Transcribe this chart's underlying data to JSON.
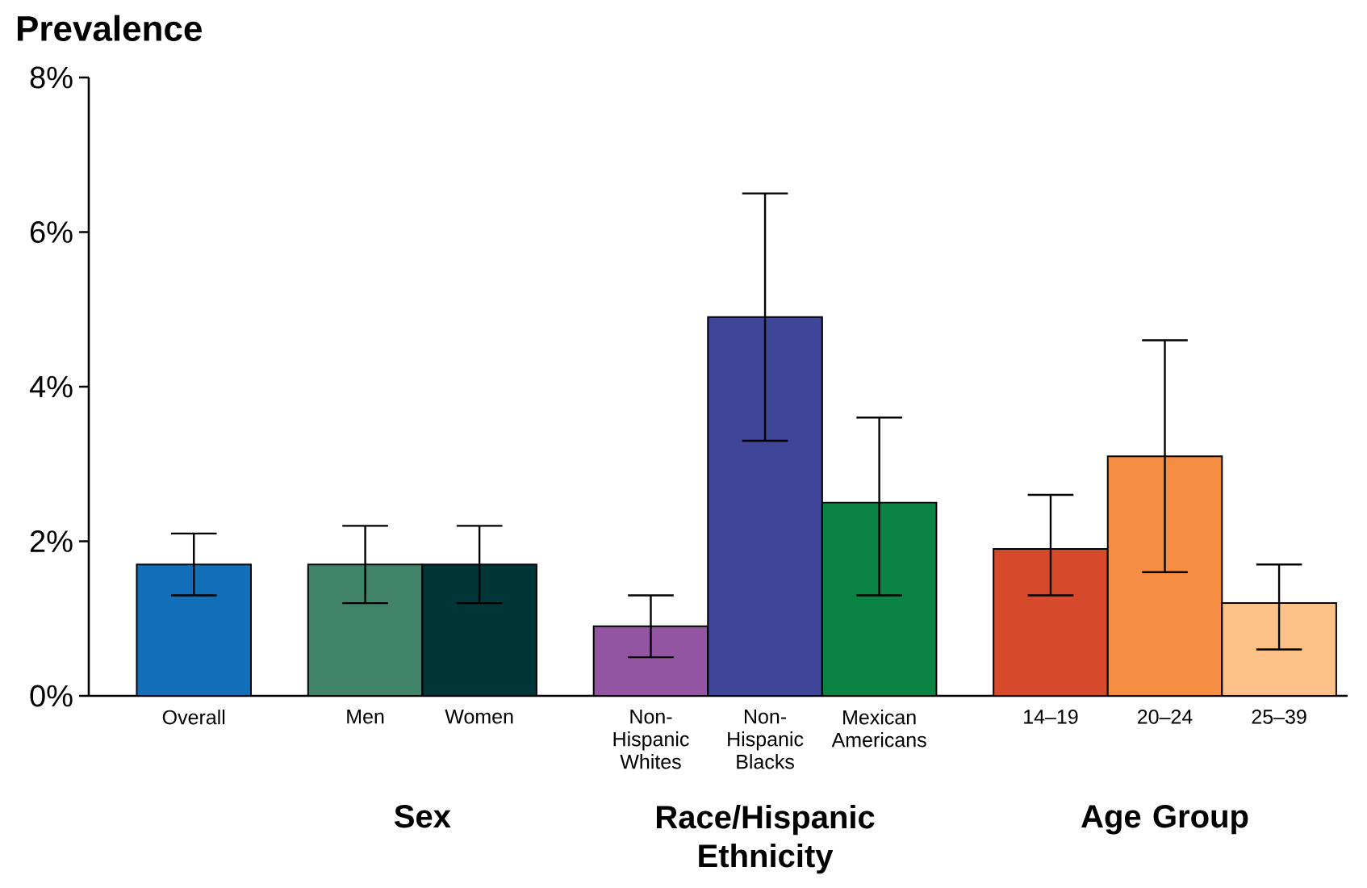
{
  "chart_data": {
    "type": "bar",
    "ylabel": "Prevalence",
    "categories": [
      "Overall",
      null,
      "Men",
      "Women",
      null,
      "Non-Hispanic Whites",
      "Non-Hispanic Blacks",
      "Mexican Americans",
      null,
      "14–19",
      "20–24",
      "25–39"
    ],
    "values": [
      1.7,
      null,
      1.7,
      1.7,
      null,
      0.9,
      4.9,
      2.5,
      null,
      1.9,
      3.1,
      1.2
    ],
    "colors": [
      "#1170b8",
      null,
      "#41826a",
      "#003638",
      null,
      "#9354a1",
      "#3f4598",
      "#0b8443",
      null,
      "#d64a2b",
      "#f58e42",
      "#fcc187"
    ],
    "errors": [
      [
        1.3,
        2.1
      ],
      null,
      [
        1.2,
        2.2
      ],
      [
        1.2,
        2.2
      ],
      null,
      [
        0.5,
        1.3
      ],
      [
        3.3,
        6.5
      ],
      [
        1.3,
        3.6
      ],
      null,
      [
        1.3,
        2.6
      ],
      [
        1.6,
        4.6
      ],
      [
        0.6,
        1.7
      ]
    ],
    "ylim": [
      0,
      8
    ],
    "yticks": [
      {
        "value": 0,
        "label": "0%"
      },
      {
        "value": 2,
        "label": "2%"
      },
      {
        "value": 4,
        "label": "4%"
      },
      {
        "value": 6,
        "label": "6%"
      },
      {
        "value": 8,
        "label": "8%"
      }
    ],
    "annotations": [
      "Sex",
      "Race/Hispanic Ethnicity",
      "Age Group"
    ]
  }
}
